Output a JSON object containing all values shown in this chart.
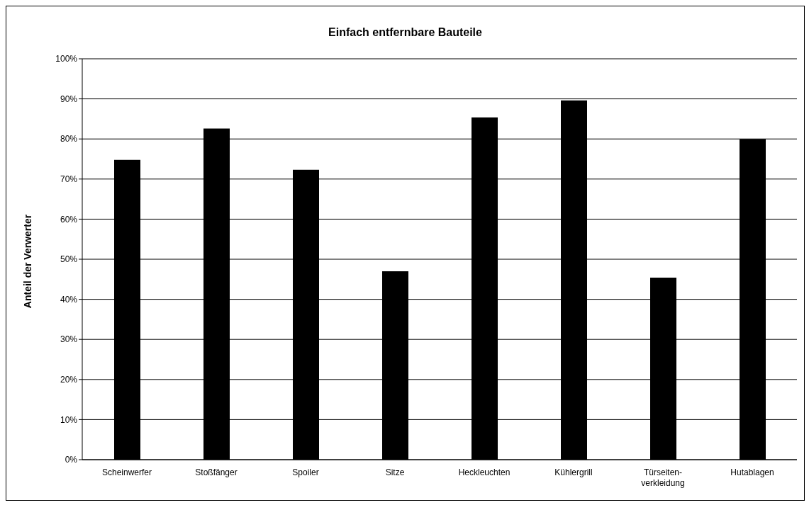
{
  "chart_data": {
    "type": "bar",
    "title": "Einfach entfernbare Bauteile",
    "ylabel": "Anteil der Verwerter",
    "categories": [
      "Scheinwerfer",
      "Stoßfänger",
      "Spoiler",
      "Sitze",
      "Heckleuchten",
      "Kühlergrill",
      "Türseiten-verkleidung",
      "Hutablagen"
    ],
    "values": [
      74.8,
      82.6,
      72.3,
      47.0,
      85.4,
      89.6,
      45.4,
      80.0
    ],
    "color": "#000000",
    "ylim": [
      0,
      100
    ],
    "yticks": [
      {
        "value": 0,
        "label": "0%"
      },
      {
        "value": 10,
        "label": "10%"
      },
      {
        "value": 20,
        "label": "20%"
      },
      {
        "value": 30,
        "label": "30%"
      },
      {
        "value": 40,
        "label": "40%"
      },
      {
        "value": 50,
        "label": "50%"
      },
      {
        "value": 60,
        "label": "60%"
      },
      {
        "value": 70,
        "label": "70%"
      },
      {
        "value": 80,
        "label": "80%"
      },
      {
        "value": 90,
        "label": "90%"
      },
      {
        "value": 100,
        "label": "100%"
      }
    ],
    "grid": "y",
    "legend": false
  }
}
